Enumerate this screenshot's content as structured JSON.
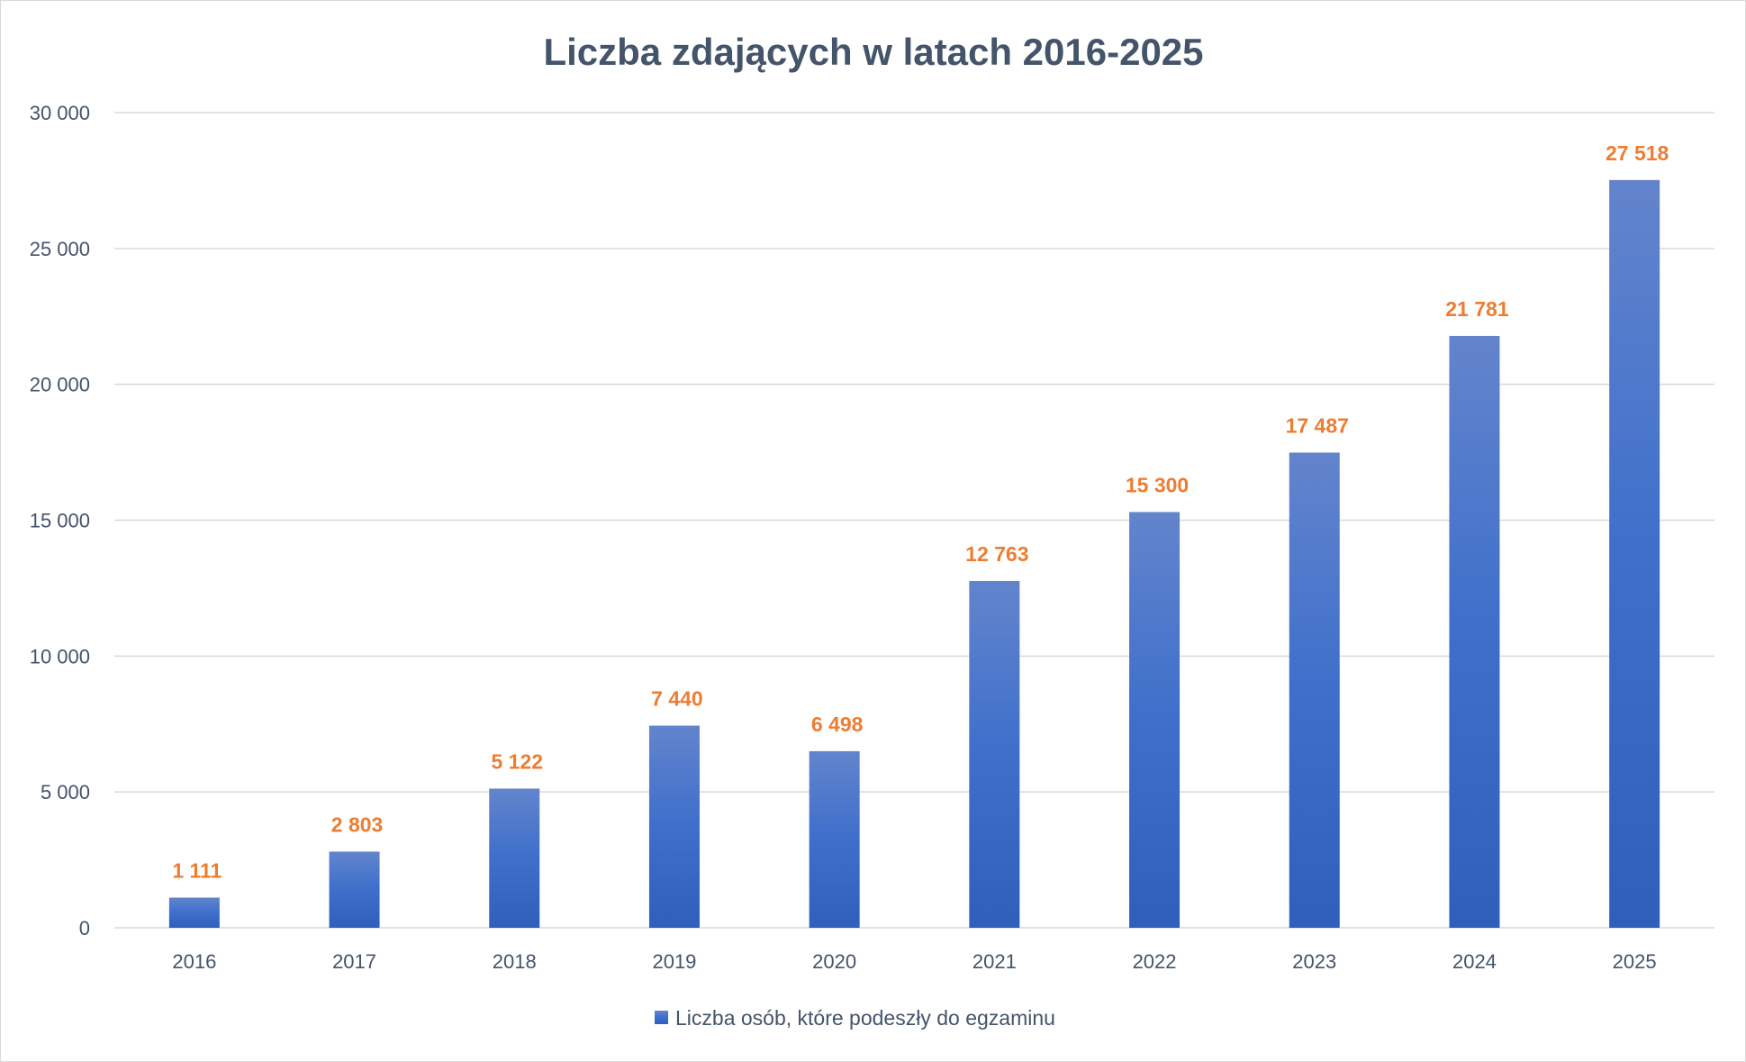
{
  "chart_data": {
    "type": "bar",
    "title": "Liczba zdających w latach 2016-2025",
    "categories": [
      "2016",
      "2017",
      "2018",
      "2019",
      "2020",
      "2021",
      "2022",
      "2023",
      "2024",
      "2025"
    ],
    "series": [
      {
        "name": "Liczba osób, które podeszły do egzaminu",
        "values": [
          1111,
          2803,
          5122,
          7440,
          6498,
          12763,
          15300,
          17487,
          21781,
          27518
        ],
        "data_labels": [
          "1 111",
          "2 803",
          "5 122",
          "7 440",
          "6 498",
          "12 763",
          "15 300",
          "17 487",
          "21 781",
          "27 518"
        ]
      }
    ],
    "ylim": [
      0,
      30000
    ],
    "yticks": [
      0,
      5000,
      10000,
      15000,
      20000,
      25000,
      30000
    ],
    "ytick_labels": [
      "0",
      "5 000",
      "10 000",
      "15 000",
      "20 000",
      "25 000",
      "30 000"
    ],
    "grid": true,
    "legend_position": "bottom",
    "xlabel": "",
    "ylabel": "",
    "colors": {
      "bar_top": "#6384cc",
      "bar_bottom": "#2e5fbb",
      "data_label": "#ed7d31",
      "text": "#44546a",
      "grid": "#d9d9d9"
    }
  }
}
